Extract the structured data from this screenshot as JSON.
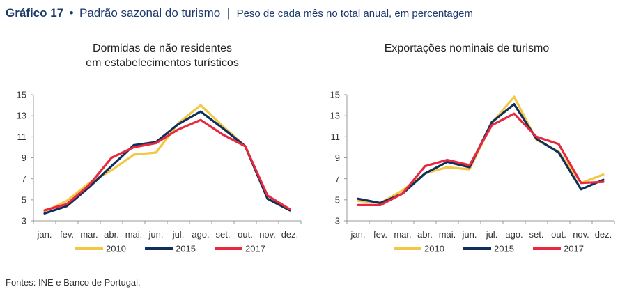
{
  "header": {
    "number": "Gráfico 17",
    "bullet": "•",
    "title": "Padrão sazonal do turismo",
    "separator": "|",
    "subtitle": "Peso de cada mês no total anual, em percentagem"
  },
  "source": "Fontes: INE e Banco de Portugal.",
  "chart_data": [
    {
      "type": "line",
      "title_lines": [
        "Dormidas de não residentes",
        "em estabelecimentos turísticos"
      ],
      "categories": [
        "jan.",
        "fev.",
        "mar.",
        "abr.",
        "mai.",
        "jun.",
        "jul.",
        "ago.",
        "set.",
        "out.",
        "nov.",
        "dez."
      ],
      "ylim": [
        3,
        15
      ],
      "yticks": [
        3,
        5,
        7,
        9,
        11,
        13,
        15
      ],
      "grid": false,
      "legend_position": "bottom",
      "series": [
        {
          "name": "2010",
          "color": "#f2c744",
          "values": [
            3.9,
            4.9,
            6.6,
            7.8,
            9.3,
            9.5,
            12.3,
            14.0,
            12.0,
            10.1,
            5.1,
            4.0
          ]
        },
        {
          "name": "2015",
          "color": "#0f2f5c",
          "values": [
            3.7,
            4.4,
            6.2,
            8.2,
            10.2,
            10.5,
            12.2,
            13.4,
            11.8,
            10.1,
            5.1,
            4.0
          ]
        },
        {
          "name": "2017",
          "color": "#e8283f",
          "values": [
            4.0,
            4.6,
            6.4,
            9.0,
            10.0,
            10.4,
            11.7,
            12.6,
            11.2,
            10.1,
            5.4,
            4.1
          ]
        }
      ]
    },
    {
      "type": "line",
      "title_lines": [
        "Exportações nominais de turismo"
      ],
      "categories": [
        "jan.",
        "fev.",
        "mar.",
        "abr.",
        "mai.",
        "jun.",
        "jul.",
        "ago.",
        "set.",
        "out.",
        "nov.",
        "dez."
      ],
      "ylim": [
        3,
        15
      ],
      "yticks": [
        3,
        5,
        7,
        9,
        11,
        13,
        15
      ],
      "grid": false,
      "legend_position": "bottom",
      "series": [
        {
          "name": "2010",
          "color": "#f2c744",
          "values": [
            4.9,
            4.7,
            5.9,
            7.5,
            8.1,
            7.9,
            12.3,
            14.8,
            10.7,
            9.6,
            6.6,
            7.4
          ]
        },
        {
          "name": "2015",
          "color": "#0f2f5c",
          "values": [
            5.1,
            4.7,
            5.6,
            7.5,
            8.6,
            8.1,
            12.4,
            14.1,
            10.8,
            9.5,
            6.0,
            6.9
          ]
        },
        {
          "name": "2017",
          "color": "#e8283f",
          "values": [
            4.5,
            4.5,
            5.6,
            8.2,
            8.8,
            8.3,
            12.1,
            13.2,
            11.0,
            10.3,
            6.6,
            6.7
          ]
        }
      ]
    }
  ]
}
